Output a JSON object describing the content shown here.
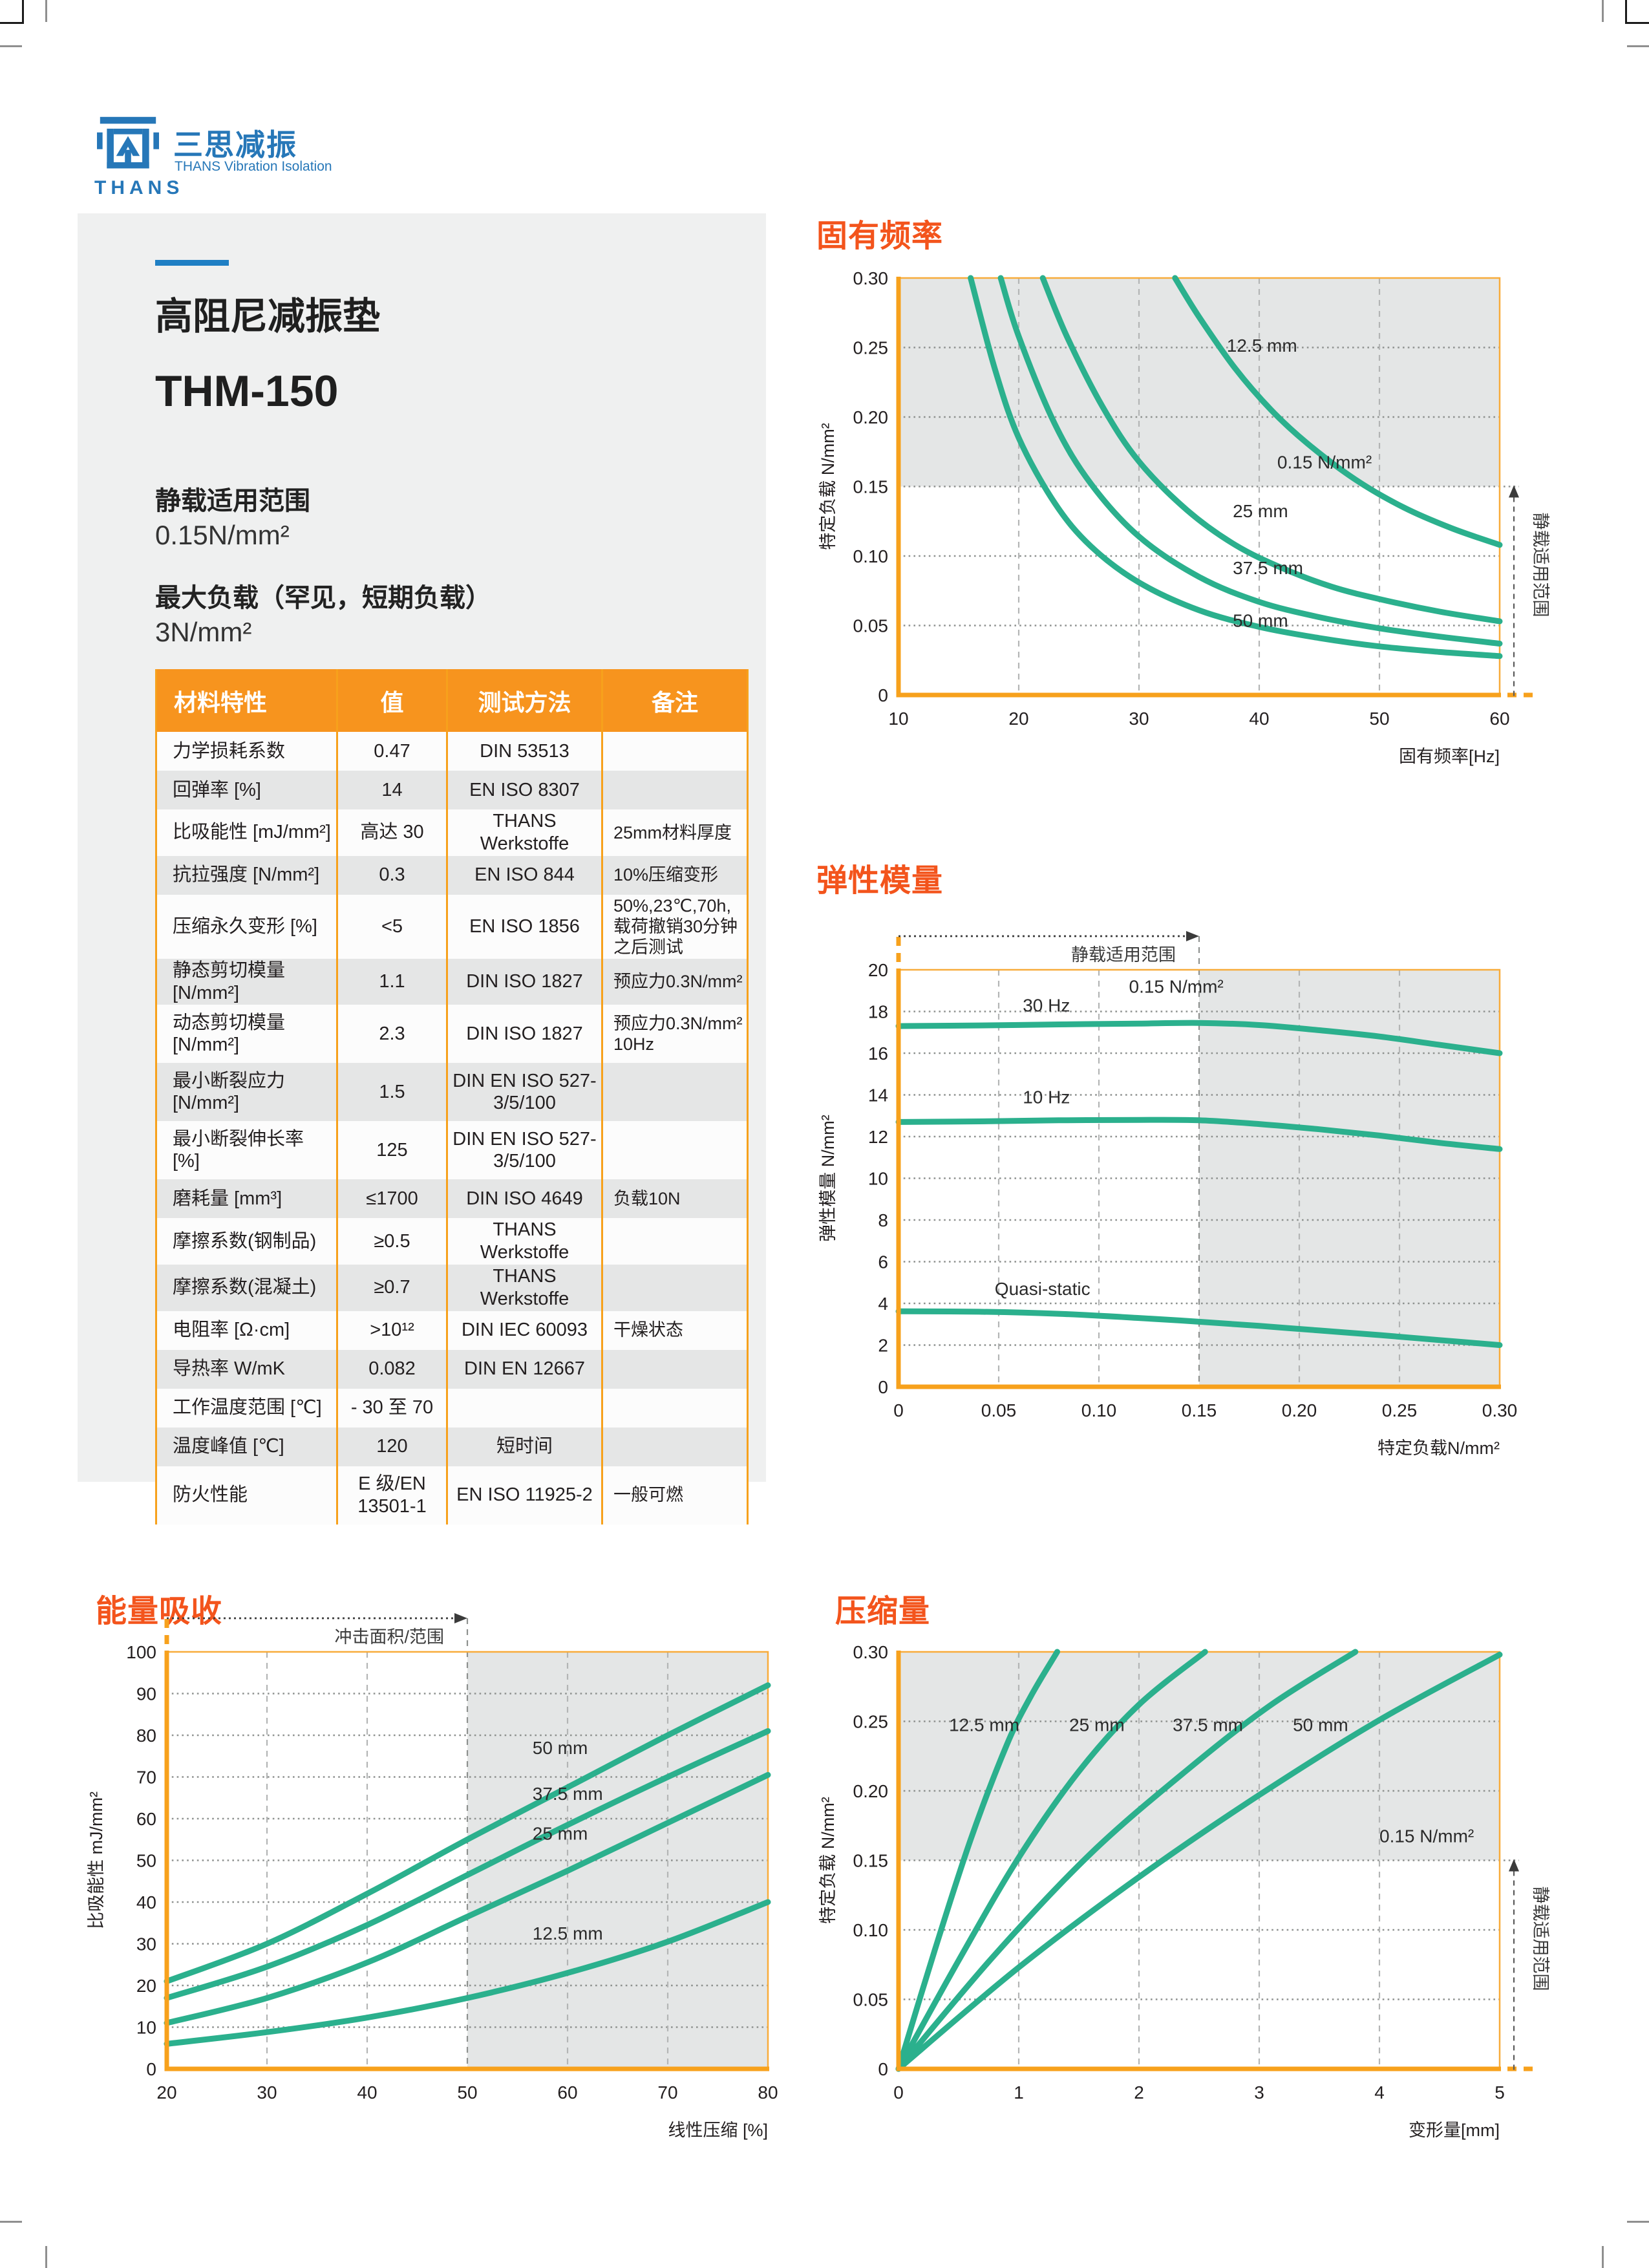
{
  "logo": {
    "icon": "thans-logo-icon",
    "wordmark": "THANS",
    "cn_name": "三思减振",
    "en_name": "THANS Vibration Isolation"
  },
  "product": {
    "category": "高阻尼减振垫",
    "model": "THM-150",
    "static_load_label": "静载适用范围",
    "static_load_value": "0.15N/mm²",
    "max_load_label": "最大负载（罕见，短期负载）",
    "max_load_value": "3N/mm²"
  },
  "table": {
    "headers": [
      "材料特性",
      "值",
      "测试方法",
      "备注"
    ],
    "rows": [
      {
        "cells": [
          "力学损耗系数",
          "0.47",
          "DIN 53513",
          ""
        ],
        "tall": false
      },
      {
        "cells": [
          "回弹率  [%]",
          "14",
          "EN ISO 8307",
          ""
        ],
        "tall": false
      },
      {
        "cells": [
          "比吸能性 [mJ/mm²]",
          "高达 30",
          "THANS Werkstoffe",
          "25mm材料厚度"
        ],
        "tall": false
      },
      {
        "cells": [
          "抗拉强度 [N/mm²]",
          "0.3",
          "EN ISO 844",
          "10%压缩变形"
        ],
        "tall": false
      },
      {
        "cells": [
          "压缩永久变形 [%]",
          "<5",
          "EN ISO 1856",
          "50%,23℃,70h,载荷撤销30分钟之后测试"
        ],
        "tall": true
      },
      {
        "cells": [
          "静态剪切模量 [N/mm²]",
          "1.1",
          "DIN ISO 1827",
          "预应力0.3N/mm²"
        ],
        "tall": false
      },
      {
        "cells": [
          "动态剪切模量 [N/mm²]",
          "2.3",
          "DIN ISO 1827",
          "预应力0.3N/mm² 10Hz"
        ],
        "tall": true
      },
      {
        "cells": [
          "最小断裂应力 [N/mm²]",
          "1.5",
          "DIN EN ISO 527-3/5/100",
          ""
        ],
        "tall": true
      },
      {
        "cells": [
          "最小断裂伸长率 [%]",
          "125",
          "DIN EN ISO 527-3/5/100",
          ""
        ],
        "tall": true
      },
      {
        "cells": [
          "磨耗量 [mm³]",
          "≤1700",
          "DIN ISO 4649",
          "负载10N"
        ],
        "tall": false
      },
      {
        "cells": [
          "摩擦系数(钢制品)",
          "≥0.5",
          "THANS Werkstoffe",
          ""
        ],
        "tall": false
      },
      {
        "cells": [
          "摩擦系数(混凝土)",
          "≥0.7",
          "THANS Werkstoffe",
          ""
        ],
        "tall": false
      },
      {
        "cells": [
          "电阻率 [Ω·cm]",
          ">10¹²",
          "DIN IEC 60093",
          "干燥状态"
        ],
        "tall": false
      },
      {
        "cells": [
          "导热率 W/mK",
          "0.082",
          "DIN EN 12667",
          ""
        ],
        "tall": false
      },
      {
        "cells": [
          "工作温度范围 [℃]",
          "- 30 至 70",
          "",
          ""
        ],
        "tall": false
      },
      {
        "cells": [
          "温度峰值 [℃]",
          "120",
          "短时间",
          ""
        ],
        "tall": false
      },
      {
        "cells": [
          "防火性能",
          "E 级/EN 13501-1",
          "EN ISO 11925-2",
          "一般可燃"
        ],
        "tall": true
      }
    ]
  },
  "chart_data": [
    {
      "key": "natural-frequency",
      "type": "line",
      "title": "固有频率",
      "xlabel": "固有频率[Hz]",
      "ylabel": "特定负载 N/mm²",
      "x_range": [
        10,
        60
      ],
      "y_range": [
        0,
        0.3
      ],
      "x_ticks": {
        "values": [
          10,
          20,
          30,
          40,
          50,
          60
        ],
        "labels": [
          "10",
          "20",
          "30",
          "40",
          "50",
          "60"
        ]
      },
      "y_ticks": {
        "values": [
          0,
          0.05,
          0.1,
          0.15,
          0.2,
          0.25,
          0.3
        ],
        "labels": [
          "0",
          "0.05",
          "0.10",
          "0.15",
          "0.20",
          "0.25",
          "0.30"
        ]
      },
      "x_grid": [
        20,
        30,
        40,
        50
      ],
      "y_grid": [
        0.05,
        0.1,
        0.15,
        0.2,
        0.25
      ],
      "shade": {
        "side": "top",
        "from": 0.15
      },
      "axis_ext": "x",
      "range_marker": {
        "type": "right",
        "text": "静载适用范围",
        "at": 0.15
      },
      "limit_label": {
        "text": "0.15 N/mm²",
        "at": [
          41.5,
          0.163
        ]
      },
      "series": [
        {
          "name": "50 mm",
          "label_at": [
            37.8,
            0.049
          ],
          "points": [
            [
              16,
              0.3
            ],
            [
              18,
              0.235
            ],
            [
              20,
              0.185
            ],
            [
              23,
              0.138
            ],
            [
              26,
              0.107
            ],
            [
              30,
              0.081
            ],
            [
              35,
              0.061
            ],
            [
              40,
              0.049
            ],
            [
              45,
              0.041
            ],
            [
              50,
              0.035
            ],
            [
              55,
              0.031
            ],
            [
              60,
              0.028
            ]
          ]
        },
        {
          "name": "37.5 mm",
          "label_at": [
            37.8,
            0.087
          ],
          "points": [
            [
              18.5,
              0.3
            ],
            [
              20,
              0.258
            ],
            [
              23,
              0.195
            ],
            [
              26,
              0.152
            ],
            [
              30,
              0.114
            ],
            [
              35,
              0.085
            ],
            [
              40,
              0.067
            ],
            [
              45,
              0.056
            ],
            [
              50,
              0.048
            ],
            [
              55,
              0.042
            ],
            [
              60,
              0.037
            ]
          ]
        },
        {
          "name": "25 mm",
          "label_at": [
            37.8,
            0.128
          ],
          "points": [
            [
              22,
              0.3
            ],
            [
              24,
              0.258
            ],
            [
              27,
              0.207
            ],
            [
              30,
              0.168
            ],
            [
              34,
              0.133
            ],
            [
              38,
              0.108
            ],
            [
              42,
              0.091
            ],
            [
              46,
              0.078
            ],
            [
              50,
              0.069
            ],
            [
              55,
              0.06
            ],
            [
              60,
              0.053
            ]
          ]
        },
        {
          "name": "12.5 mm",
          "label_at": [
            37.3,
            0.247
          ],
          "points": [
            [
              33,
              0.3
            ],
            [
              35,
              0.272
            ],
            [
              38,
              0.235
            ],
            [
              41,
              0.205
            ],
            [
              44,
              0.181
            ],
            [
              48,
              0.155
            ],
            [
              52,
              0.135
            ],
            [
              56,
              0.12
            ],
            [
              60,
              0.108
            ]
          ]
        }
      ]
    },
    {
      "key": "elastic-modulus",
      "type": "line",
      "title": "弹性模量",
      "xlabel": "特定负载N/mm²",
      "ylabel": "弹性模量 N/mm²",
      "x_range": [
        0,
        0.3
      ],
      "y_range": [
        0,
        20
      ],
      "x_ticks": {
        "values": [
          0,
          0.05,
          0.1,
          0.15,
          0.2,
          0.25,
          0.3
        ],
        "labels": [
          "0",
          "0.05",
          "0.10",
          "0.15",
          "0.20",
          "0.25",
          "0.30"
        ]
      },
      "y_ticks": {
        "values": [
          0,
          2,
          4,
          6,
          8,
          10,
          12,
          14,
          16,
          18,
          20
        ],
        "labels": [
          "0",
          "2",
          "4",
          "6",
          "8",
          "10",
          "12",
          "14",
          "16",
          "18",
          "20"
        ]
      },
      "x_grid": [
        0.05,
        0.1,
        0.15,
        0.2,
        0.25
      ],
      "y_grid": [
        2,
        4,
        6,
        8,
        10,
        12,
        14,
        16,
        18
      ],
      "shade": {
        "side": "right",
        "from": 0.15
      },
      "axis_ext": "y",
      "range_marker": {
        "type": "top",
        "text": "静载适用范围",
        "at": 0.15
      },
      "limit_label": {
        "text": "0.15 N/mm²",
        "at": [
          0.115,
          18.9
        ]
      },
      "series": [
        {
          "name": "30 Hz",
          "label_at": [
            0.062,
            18.0
          ],
          "points": [
            [
              0,
              17.3
            ],
            [
              0.04,
              17.33
            ],
            [
              0.08,
              17.38
            ],
            [
              0.12,
              17.42
            ],
            [
              0.15,
              17.45
            ],
            [
              0.18,
              17.35
            ],
            [
              0.21,
              17.1
            ],
            [
              0.24,
              16.8
            ],
            [
              0.27,
              16.4
            ],
            [
              0.3,
              16.0
            ]
          ]
        },
        {
          "name": "10 Hz",
          "label_at": [
            0.062,
            13.6
          ],
          "points": [
            [
              0,
              12.7
            ],
            [
              0.04,
              12.73
            ],
            [
              0.08,
              12.78
            ],
            [
              0.12,
              12.8
            ],
            [
              0.15,
              12.78
            ],
            [
              0.18,
              12.6
            ],
            [
              0.21,
              12.35
            ],
            [
              0.24,
              12.05
            ],
            [
              0.27,
              11.7
            ],
            [
              0.3,
              11.4
            ]
          ]
        },
        {
          "name": "Quasi-static",
          "label_at": [
            0.048,
            4.4
          ],
          "points": [
            [
              0,
              3.62
            ],
            [
              0.04,
              3.6
            ],
            [
              0.08,
              3.5
            ],
            [
              0.12,
              3.3
            ],
            [
              0.15,
              3.12
            ],
            [
              0.18,
              2.92
            ],
            [
              0.21,
              2.7
            ],
            [
              0.24,
              2.48
            ],
            [
              0.27,
              2.24
            ],
            [
              0.3,
              2.0
            ]
          ]
        }
      ]
    },
    {
      "key": "energy-absorption",
      "type": "line",
      "title": "能量吸收",
      "xlabel": "线性压缩 [%]",
      "ylabel": "比吸能性 mJ/mm²",
      "x_range": [
        20,
        80
      ],
      "y_range": [
        0,
        100
      ],
      "x_ticks": {
        "values": [
          20,
          30,
          40,
          50,
          60,
          70,
          80
        ],
        "labels": [
          "20",
          "30",
          "40",
          "50",
          "60",
          "70",
          "80"
        ]
      },
      "y_ticks": {
        "values": [
          0,
          10,
          20,
          30,
          40,
          50,
          60,
          70,
          80,
          90,
          100
        ],
        "labels": [
          "0",
          "10",
          "20",
          "30",
          "40",
          "50",
          "60",
          "70",
          "80",
          "90",
          "100"
        ]
      },
      "x_grid": [
        30,
        40,
        50,
        60,
        70
      ],
      "y_grid": [
        10,
        20,
        30,
        40,
        50,
        60,
        70,
        80,
        90
      ],
      "shade": {
        "side": "right",
        "from": 50
      },
      "axis_ext": "y",
      "range_marker": {
        "type": "top",
        "text": "冲击面积/范围",
        "at": 50
      },
      "limit_label": null,
      "series": [
        {
          "name": "50 mm",
          "label_at": [
            56.5,
            75.5
          ],
          "points": [
            [
              20,
              21
            ],
            [
              30,
              30
            ],
            [
              40,
              42
            ],
            [
              50,
              55
            ],
            [
              60,
              67.5
            ],
            [
              70,
              80
            ],
            [
              80,
              92
            ]
          ]
        },
        {
          "name": "37.5 mm",
          "label_at": [
            56.5,
            64.5
          ],
          "points": [
            [
              20,
              17
            ],
            [
              30,
              24.5
            ],
            [
              40,
              34.5
            ],
            [
              50,
              46.5
            ],
            [
              60,
              58.5
            ],
            [
              70,
              70
            ],
            [
              80,
              81
            ]
          ]
        },
        {
          "name": "25 mm",
          "label_at": [
            56.5,
            55
          ],
          "points": [
            [
              20,
              11
            ],
            [
              30,
              17
            ],
            [
              40,
              25.5
            ],
            [
              50,
              36.5
            ],
            [
              60,
              47.5
            ],
            [
              70,
              59
            ],
            [
              80,
              70.5
            ]
          ]
        },
        {
          "name": "12.5 mm",
          "label_at": [
            56.5,
            31
          ],
          "points": [
            [
              20,
              6
            ],
            [
              30,
              8.8
            ],
            [
              40,
              12.3
            ],
            [
              50,
              17
            ],
            [
              60,
              23
            ],
            [
              70,
              30.5
            ],
            [
              80,
              40
            ]
          ]
        }
      ]
    },
    {
      "key": "compression",
      "type": "line",
      "title": "压缩量",
      "xlabel": "变形量[mm]",
      "ylabel": "特定负载 N/mm²",
      "x_range": [
        0,
        5
      ],
      "y_range": [
        0,
        0.3
      ],
      "x_ticks": {
        "values": [
          0,
          1,
          2,
          3,
          4,
          5
        ],
        "labels": [
          "0",
          "1",
          "2",
          "3",
          "4",
          "5"
        ]
      },
      "y_ticks": {
        "values": [
          0,
          0.05,
          0.1,
          0.15,
          0.2,
          0.25,
          0.3
        ],
        "labels": [
          "0",
          "0.05",
          "0.10",
          "0.15",
          "0.20",
          "0.25",
          "0.30"
        ]
      },
      "x_grid": [
        1,
        2,
        3,
        4
      ],
      "y_grid": [
        0.05,
        0.1,
        0.15,
        0.2,
        0.25
      ],
      "shade": {
        "side": "top",
        "from": 0.15
      },
      "axis_ext": "x",
      "range_marker": {
        "type": "right",
        "text": "静载适用范围",
        "at": 0.15
      },
      "limit_label": {
        "text": "0.15 N/mm²",
        "at": [
          4.0,
          0.163
        ]
      },
      "series": [
        {
          "name": "12.5 mm",
          "label_at": [
            0.42,
            0.243
          ],
          "points": [
            [
              0,
              0
            ],
            [
              0.3,
              0.085
            ],
            [
              0.6,
              0.165
            ],
            [
              0.9,
              0.233
            ],
            [
              1.1,
              0.268
            ],
            [
              1.32,
              0.3
            ]
          ]
        },
        {
          "name": "25 mm",
          "label_at": [
            1.42,
            0.243
          ],
          "points": [
            [
              0,
              0
            ],
            [
              0.5,
              0.078
            ],
            [
              1.0,
              0.152
            ],
            [
              1.5,
              0.214
            ],
            [
              2.0,
              0.262
            ],
            [
              2.55,
              0.3
            ]
          ]
        },
        {
          "name": "37.5 mm",
          "label_at": [
            2.28,
            0.243
          ],
          "points": [
            [
              0,
              0
            ],
            [
              0.8,
              0.082
            ],
            [
              1.6,
              0.155
            ],
            [
              2.4,
              0.215
            ],
            [
              3.1,
              0.262
            ],
            [
              3.8,
              0.3
            ]
          ]
        },
        {
          "name": "50 mm",
          "label_at": [
            3.28,
            0.243
          ],
          "points": [
            [
              0,
              0
            ],
            [
              1.0,
              0.073
            ],
            [
              2.0,
              0.138
            ],
            [
              3.0,
              0.197
            ],
            [
              4.0,
              0.251
            ],
            [
              5.0,
              0.298
            ]
          ]
        }
      ]
    }
  ],
  "colors": {
    "brand_blue": "#2677B8",
    "accent_blue_line": "#1F7FC4",
    "table_header_orange": "#F7941E",
    "axis_orange": "#F7A11C",
    "section_heading_orange": "#F3541C",
    "curve_green": "#2BB08D",
    "shade_gray": "#E4E6E6",
    "panel_gray": "#EFF0F0"
  }
}
